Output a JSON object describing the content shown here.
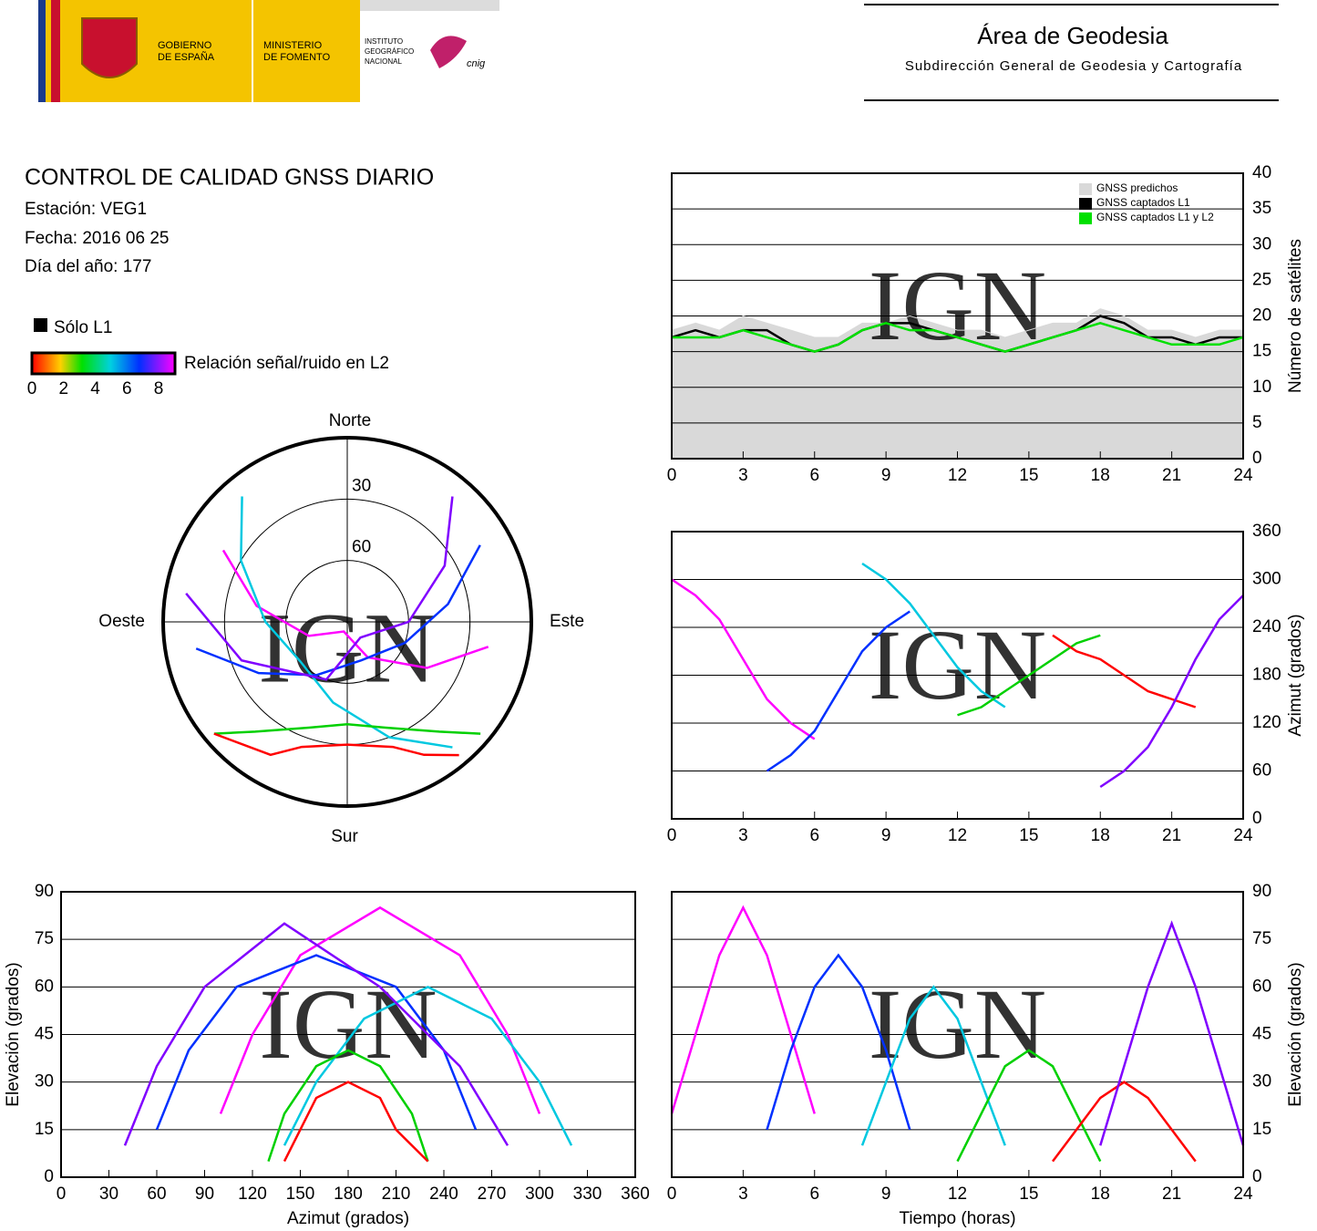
{
  "header": {
    "gobierno": [
      "GOBIERNO",
      "DE ESPAÑA"
    ],
    "ministerio": [
      "MINISTERIO",
      "DE FOMENTO"
    ],
    "instituto": [
      "INSTITUTO",
      "GEOGRÁFICO",
      "NACIONAL"
    ],
    "cnig": "cnig",
    "area": "Área de Geodesia",
    "subarea": "Subdirección General de Geodesia y Cartografía"
  },
  "report": {
    "title": "CONTROL DE CALIDAD GNSS DIARIO",
    "station": "Estación: VEG1",
    "date": "Fecha: 2016 06 25",
    "doy": "Día del año: 177",
    "l1_only": "Sólo L1",
    "snr_label": "Relación señal/ruido en L2",
    "snr_ticks": [
      0,
      2,
      4,
      6,
      8
    ]
  },
  "chart_data": [
    {
      "type": "line",
      "watermark": "IGN",
      "ylabel": "Número de satélites",
      "y_axis_side": "right",
      "grid": true,
      "legend": "upper right",
      "xlim": [
        0,
        24
      ],
      "xticks": [
        0,
        3,
        6,
        9,
        12,
        15,
        18,
        21,
        24
      ],
      "ylim": [
        0,
        40
      ],
      "yticks": [
        0,
        5,
        10,
        15,
        20,
        25,
        30,
        35,
        40
      ],
      "x": [
        0,
        1,
        2,
        3,
        4,
        5,
        6,
        7,
        8,
        9,
        10,
        11,
        12,
        13,
        14,
        15,
        16,
        17,
        18,
        19,
        20,
        21,
        22,
        23,
        24
      ],
      "series": [
        {
          "name": "GNSS predichos",
          "color": "#d9d9d9",
          "fill": true,
          "values": [
            18,
            19,
            18,
            20,
            19,
            18,
            17,
            17,
            19,
            19,
            20,
            19,
            18,
            18,
            17,
            18,
            19,
            19,
            21,
            20,
            18,
            18,
            17,
            18,
            18
          ]
        },
        {
          "name": "GNSS captados L1",
          "color": "#000000",
          "values": [
            17,
            18,
            17,
            18,
            18,
            16,
            15,
            16,
            18,
            19,
            19,
            18,
            17,
            16,
            15,
            16,
            17,
            18,
            20,
            19,
            17,
            17,
            16,
            17,
            17
          ]
        },
        {
          "name": "GNSS captados L1 y L2",
          "color": "#00e000",
          "values": [
            17,
            17,
            17,
            18,
            17,
            16,
            15,
            16,
            18,
            19,
            18,
            18,
            17,
            16,
            15,
            16,
            17,
            18,
            19,
            18,
            17,
            16,
            16,
            16,
            17
          ]
        }
      ]
    },
    {
      "type": "line",
      "watermark": "IGN",
      "ylabel": "Azimut (grados)",
      "y_axis_side": "right",
      "grid": true,
      "xlim": [
        0,
        24
      ],
      "xticks": [
        0,
        3,
        6,
        9,
        12,
        15,
        18,
        21,
        24
      ],
      "ylim": [
        0,
        360
      ],
      "yticks": [
        0,
        60,
        120,
        180,
        240,
        300,
        360
      ],
      "series": [
        {
          "color": "#ff00ff",
          "x": [
            0,
            1,
            2,
            3,
            4,
            5,
            6
          ],
          "values": [
            300,
            280,
            250,
            200,
            150,
            120,
            100
          ]
        },
        {
          "color": "#0030ff",
          "x": [
            4,
            5,
            6,
            7,
            8,
            9,
            10
          ],
          "values": [
            60,
            80,
            110,
            160,
            210,
            240,
            260
          ]
        },
        {
          "color": "#00c8e0",
          "x": [
            8,
            9,
            10,
            11,
            12,
            13,
            14
          ],
          "values": [
            320,
            300,
            270,
            230,
            190,
            160,
            140
          ]
        },
        {
          "color": "#00d000",
          "x": [
            12,
            13,
            14,
            15,
            16,
            17,
            18
          ],
          "values": [
            130,
            140,
            160,
            180,
            200,
            220,
            230
          ]
        },
        {
          "color": "#ff0000",
          "x": [
            16,
            17,
            18,
            19,
            20,
            21,
            22
          ],
          "values": [
            230,
            210,
            200,
            180,
            160,
            150,
            140
          ]
        },
        {
          "color": "#8000ff",
          "x": [
            18,
            19,
            20,
            21,
            22,
            23,
            24
          ],
          "values": [
            40,
            60,
            90,
            140,
            200,
            250,
            280
          ]
        }
      ]
    },
    {
      "type": "polar",
      "watermark": "IGN",
      "north": "Norte",
      "south": "Sur",
      "east": "Este",
      "west": "Oeste",
      "rlim": [
        90,
        0
      ],
      "rticks": [
        30,
        60
      ],
      "series": [
        {
          "color": "#ff00ff",
          "theta": [
            300,
            280,
            250,
            200,
            150,
            120,
            100
          ],
          "values": [
            20,
            45,
            70,
            85,
            70,
            45,
            20
          ]
        },
        {
          "color": "#0030ff",
          "theta": [
            60,
            80,
            110,
            160,
            210,
            240,
            260
          ],
          "values": [
            15,
            40,
            60,
            70,
            60,
            40,
            15
          ]
        },
        {
          "color": "#00c8e0",
          "theta": [
            320,
            300,
            270,
            230,
            190,
            160,
            140
          ],
          "values": [
            10,
            30,
            50,
            60,
            50,
            30,
            10
          ]
        },
        {
          "color": "#00d000",
          "theta": [
            130,
            140,
            160,
            180,
            200,
            220,
            230
          ],
          "values": [
            5,
            20,
            35,
            40,
            35,
            20,
            5
          ]
        },
        {
          "color": "#ff0000",
          "theta": [
            230,
            210,
            200,
            180,
            160,
            150,
            140
          ],
          "values": [
            5,
            15,
            25,
            30,
            25,
            15,
            5
          ]
        },
        {
          "color": "#8000ff",
          "theta": [
            40,
            60,
            90,
            140,
            200,
            250,
            280
          ],
          "values": [
            10,
            35,
            60,
            80,
            60,
            35,
            10
          ]
        }
      ]
    },
    {
      "type": "line",
      "watermark": "IGN",
      "xlabel": "Azimut (grados)",
      "ylabel": "Elevación (grados)",
      "y_axis_side": "left",
      "grid": true,
      "xlim": [
        0,
        360
      ],
      "xticks": [
        0,
        30,
        60,
        90,
        120,
        150,
        180,
        210,
        240,
        270,
        300,
        330,
        360
      ],
      "ylim": [
        0,
        90
      ],
      "yticks": [
        0,
        15,
        30,
        45,
        60,
        75,
        90
      ],
      "series": [
        {
          "color": "#ff00ff",
          "x": [
            300,
            280,
            250,
            200,
            150,
            120,
            100
          ],
          "values": [
            20,
            45,
            70,
            85,
            70,
            45,
            20
          ]
        },
        {
          "color": "#0030ff",
          "x": [
            60,
            80,
            110,
            160,
            210,
            240,
            260
          ],
          "values": [
            15,
            40,
            60,
            70,
            60,
            40,
            15
          ]
        },
        {
          "color": "#00c8e0",
          "x": [
            320,
            300,
            270,
            230,
            190,
            160,
            140
          ],
          "values": [
            10,
            30,
            50,
            60,
            50,
            30,
            10
          ]
        },
        {
          "color": "#00d000",
          "x": [
            130,
            140,
            160,
            180,
            200,
            220,
            230
          ],
          "values": [
            5,
            20,
            35,
            40,
            35,
            20,
            5
          ]
        },
        {
          "color": "#ff0000",
          "x": [
            230,
            210,
            200,
            180,
            160,
            150,
            140
          ],
          "values": [
            5,
            15,
            25,
            30,
            25,
            15,
            5
          ]
        },
        {
          "color": "#8000ff",
          "x": [
            40,
            60,
            90,
            140,
            200,
            250,
            280
          ],
          "values": [
            10,
            35,
            60,
            80,
            60,
            35,
            10
          ]
        }
      ]
    },
    {
      "type": "line",
      "watermark": "IGN",
      "xlabel": "Tiempo (horas)",
      "ylabel": "Elevación (grados)",
      "y_axis_side": "right",
      "grid": true,
      "xlim": [
        0,
        24
      ],
      "xticks": [
        0,
        3,
        6,
        9,
        12,
        15,
        18,
        21,
        24
      ],
      "ylim": [
        0,
        90
      ],
      "yticks": [
        0,
        15,
        30,
        45,
        60,
        75,
        90
      ],
      "series": [
        {
          "color": "#ff00ff",
          "x": [
            0,
            1,
            2,
            3,
            4,
            5,
            6
          ],
          "values": [
            20,
            45,
            70,
            85,
            70,
            45,
            20
          ]
        },
        {
          "color": "#0030ff",
          "x": [
            4,
            5,
            6,
            7,
            8,
            9,
            10
          ],
          "values": [
            15,
            40,
            60,
            70,
            60,
            40,
            15
          ]
        },
        {
          "color": "#00c8e0",
          "x": [
            8,
            9,
            10,
            11,
            12,
            13,
            14
          ],
          "values": [
            10,
            30,
            50,
            60,
            50,
            30,
            10
          ]
        },
        {
          "color": "#00d000",
          "x": [
            12,
            13,
            14,
            15,
            16,
            17,
            18
          ],
          "values": [
            5,
            20,
            35,
            40,
            35,
            20,
            5
          ]
        },
        {
          "color": "#ff0000",
          "x": [
            16,
            17,
            18,
            19,
            20,
            21,
            22
          ],
          "values": [
            5,
            15,
            25,
            30,
            25,
            15,
            5
          ]
        },
        {
          "color": "#8000ff",
          "x": [
            18,
            19,
            20,
            21,
            22,
            23,
            24
          ],
          "values": [
            10,
            35,
            60,
            80,
            60,
            35,
            10
          ]
        }
      ]
    }
  ]
}
